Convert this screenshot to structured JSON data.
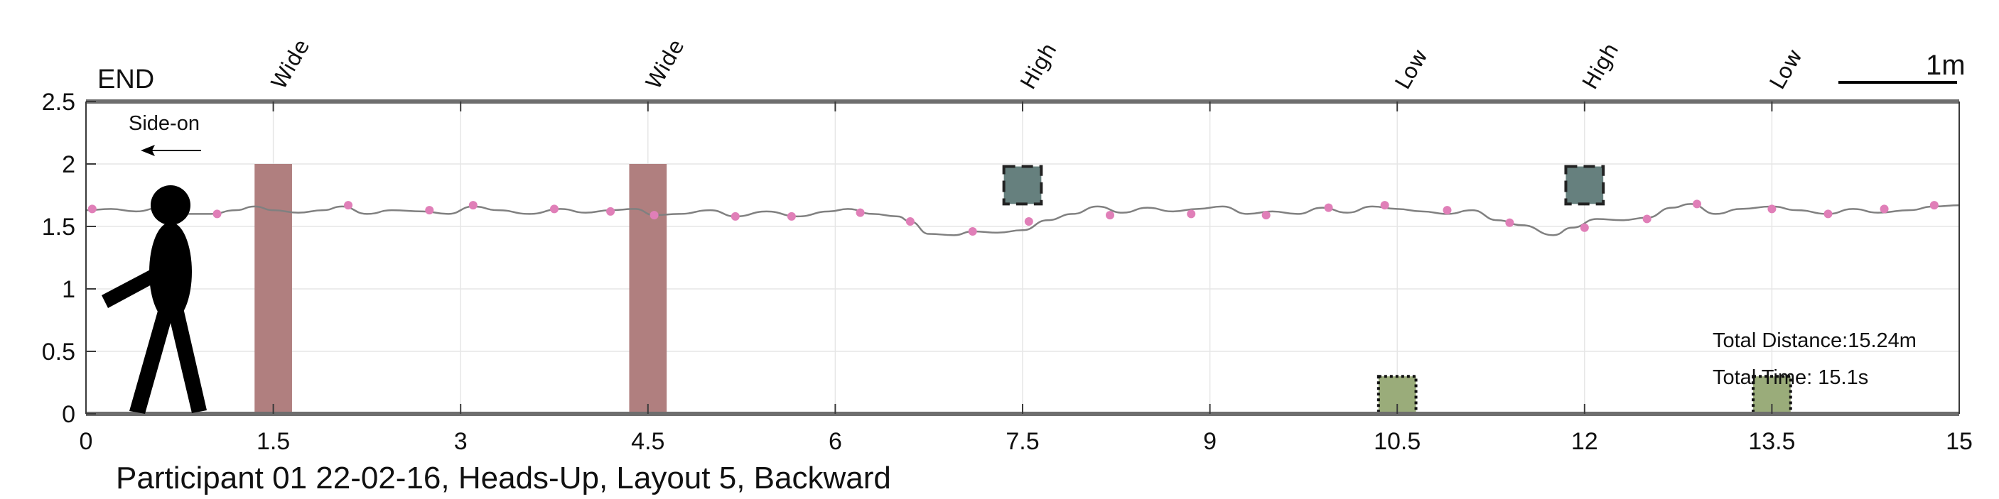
{
  "chart_data": {
    "type": "line",
    "title": "",
    "caption": "Participant 01 22-02-16, Heads-Up, Layout 5, Backward",
    "xlim": [
      0,
      15
    ],
    "ylim": [
      0,
      2.5
    ],
    "x_ticks": [
      0,
      1.5,
      3,
      4.5,
      6,
      7.5,
      9,
      10.5,
      12,
      13.5,
      15
    ],
    "x_tick_labels": [
      "0",
      "1.5",
      "3",
      "4.5",
      "6",
      "7.5",
      "9",
      "10.5",
      "12",
      "13.5",
      "15"
    ],
    "y_ticks": [
      0,
      0.5,
      1,
      1.5,
      2,
      2.5
    ],
    "y_tick_labels": [
      "0",
      "0.5",
      "1",
      "1.5",
      "2",
      "2.5"
    ],
    "grid": true,
    "end_label": "END",
    "direction_label": "Side-on",
    "scale_bar_label": "1m",
    "total_distance": "Total Distance:15.24m",
    "total_time": "Total Time: 15.1s",
    "obstacles": [
      {
        "label": "Wide",
        "type": "wide",
        "x_center": 1.5,
        "width": 0.3,
        "y_bottom": 0,
        "y_top": 2.0,
        "color": "#b07f7f"
      },
      {
        "label": "Wide",
        "type": "wide",
        "x_center": 4.5,
        "width": 0.3,
        "y_bottom": 0,
        "y_top": 2.0,
        "color": "#b07f7f"
      },
      {
        "label": "High",
        "type": "high",
        "x_center": 7.5,
        "width": 0.3,
        "y_bottom": 1.68,
        "y_top": 1.98,
        "color": "#66807e"
      },
      {
        "label": "Low",
        "type": "low",
        "x_center": 10.5,
        "width": 0.3,
        "y_bottom": 0,
        "y_top": 0.3,
        "color": "#9aac7a"
      },
      {
        "label": "High",
        "type": "high",
        "x_center": 12.0,
        "width": 0.3,
        "y_bottom": 1.68,
        "y_top": 1.98,
        "color": "#66807e"
      },
      {
        "label": "Low",
        "type": "low",
        "x_center": 13.5,
        "width": 0.3,
        "y_bottom": 0,
        "y_top": 0.3,
        "color": "#9aac7a"
      }
    ],
    "series": [
      {
        "color": "#808080",
        "x": [
          0.0,
          0.2,
          0.4,
          0.6,
          0.8,
          1.0,
          1.2,
          1.35,
          1.5,
          1.7,
          1.9,
          2.05,
          2.25,
          2.45,
          2.7,
          2.9,
          3.1,
          3.3,
          3.55,
          3.8,
          4.0,
          4.2,
          4.4,
          4.55,
          4.75,
          5.0,
          5.2,
          5.45,
          5.7,
          5.95,
          6.1,
          6.3,
          6.5,
          6.6,
          6.75,
          6.95,
          7.1,
          7.3,
          7.5,
          7.7,
          7.9,
          8.1,
          8.3,
          8.5,
          8.7,
          8.9,
          9.1,
          9.3,
          9.5,
          9.7,
          9.9,
          10.1,
          10.3,
          10.5,
          10.7,
          10.9,
          11.1,
          11.3,
          11.5,
          11.75,
          11.9,
          12.1,
          12.3,
          12.5,
          12.7,
          12.85,
          13.05,
          13.25,
          13.5,
          13.7,
          13.95,
          14.15,
          14.35,
          14.6,
          14.8,
          15.0
        ],
        "y": [
          1.63,
          1.64,
          1.62,
          1.65,
          1.6,
          1.6,
          1.63,
          1.66,
          1.63,
          1.61,
          1.63,
          1.66,
          1.6,
          1.63,
          1.62,
          1.6,
          1.66,
          1.63,
          1.6,
          1.64,
          1.61,
          1.63,
          1.64,
          1.59,
          1.6,
          1.63,
          1.58,
          1.62,
          1.58,
          1.62,
          1.64,
          1.6,
          1.58,
          1.54,
          1.44,
          1.43,
          1.46,
          1.45,
          1.47,
          1.55,
          1.6,
          1.66,
          1.61,
          1.65,
          1.62,
          1.64,
          1.66,
          1.6,
          1.62,
          1.6,
          1.65,
          1.61,
          1.66,
          1.64,
          1.62,
          1.6,
          1.63,
          1.55,
          1.51,
          1.43,
          1.49,
          1.56,
          1.55,
          1.57,
          1.65,
          1.68,
          1.6,
          1.64,
          1.66,
          1.63,
          1.6,
          1.64,
          1.61,
          1.63,
          1.66,
          1.67
        ]
      }
    ],
    "markers": {
      "color": "#e07fb8",
      "x": [
        0.05,
        1.05,
        2.1,
        2.75,
        3.1,
        3.75,
        4.2,
        4.55,
        5.2,
        5.65,
        6.2,
        6.6,
        7.1,
        7.55,
        8.2,
        8.85,
        9.45,
        9.95,
        10.4,
        10.9,
        11.4,
        12.0,
        12.5,
        12.9,
        13.5,
        13.95,
        14.4,
        14.8
      ],
      "y": [
        1.64,
        1.6,
        1.67,
        1.63,
        1.67,
        1.64,
        1.62,
        1.59,
        1.58,
        1.58,
        1.61,
        1.54,
        1.46,
        1.54,
        1.59,
        1.6,
        1.59,
        1.65,
        1.67,
        1.63,
        1.53,
        1.49,
        1.56,
        1.68,
        1.64,
        1.6,
        1.64,
        1.67
      ]
    }
  }
}
